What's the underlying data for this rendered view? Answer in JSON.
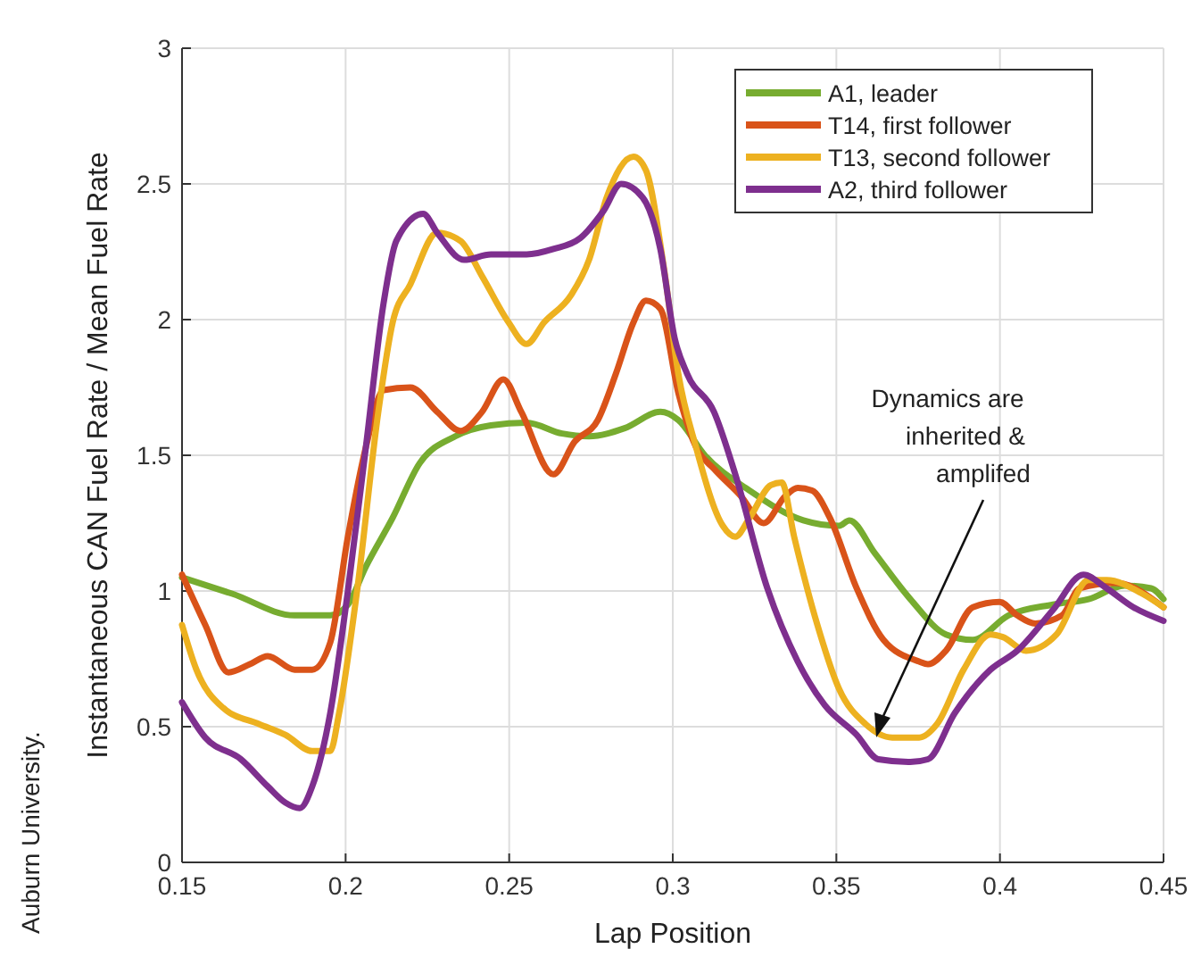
{
  "chart_data": {
    "type": "line",
    "xlabel": "Lap Position",
    "ylabel": "Instantaneous CAN Fuel Rate / Mean Fuel Rate",
    "xlim": [
      0.15,
      0.45
    ],
    "xticks": [
      0.15,
      0.2,
      0.25,
      0.3,
      0.35,
      0.4,
      0.45
    ],
    "ylim": [
      0,
      3
    ],
    "yticks": [
      0,
      0.5,
      1,
      1.5,
      2,
      2.5,
      3
    ],
    "grid": true,
    "legend": "top right",
    "marker": "none",
    "line_style": "solid",
    "annotations": [
      "Dynamics are\ninherited &\namplifed",
      "Auburn University."
    ],
    "series": [
      {
        "name": "A1, leader",
        "color": "#77ac30",
        "x": [
          0.15,
          0.1653,
          0.1844,
          0.1953,
          0.2007,
          0.2062,
          0.2144,
          0.2226,
          0.2335,
          0.2444,
          0.2553,
          0.2662,
          0.2744,
          0.2853,
          0.2962,
          0.3017,
          0.3098,
          0.3235,
          0.3399,
          0.3508,
          0.354,
          0.3617,
          0.3726,
          0.3835,
          0.3917,
          0.4026,
          0.4162,
          0.4271,
          0.4381,
          0.4462,
          0.45
        ],
        "values": [
          1.05,
          0.99,
          0.91,
          0.91,
          0.95,
          1.09,
          1.27,
          1.47,
          1.57,
          1.61,
          1.62,
          1.58,
          1.57,
          1.6,
          1.66,
          1.63,
          1.5,
          1.37,
          1.26,
          1.24,
          1.26,
          1.14,
          0.97,
          0.84,
          0.82,
          0.91,
          0.95,
          0.97,
          1.02,
          1.01,
          0.97
        ]
      },
      {
        "name": "T14, first follower",
        "color": "#d95319",
        "x": [
          0.15,
          0.1571,
          0.1642,
          0.1707,
          0.1762,
          0.1844,
          0.1898,
          0.1953,
          0.2007,
          0.2062,
          0.2116,
          0.2198,
          0.228,
          0.2351,
          0.2417,
          0.2482,
          0.2537,
          0.2635,
          0.27,
          0.2771,
          0.2826,
          0.288,
          0.2918,
          0.2962,
          0.3017,
          0.3071,
          0.3126,
          0.3208,
          0.3278,
          0.3344,
          0.3382,
          0.3426,
          0.348,
          0.3562,
          0.3644,
          0.3753,
          0.378,
          0.3835,
          0.3917,
          0.3999,
          0.4053,
          0.4108,
          0.419,
          0.4244,
          0.4353,
          0.45
        ],
        "values": [
          1.06,
          0.875,
          0.7,
          0.73,
          0.76,
          0.71,
          0.71,
          0.81,
          1.2,
          1.53,
          1.74,
          1.75,
          1.66,
          1.59,
          1.66,
          1.78,
          1.66,
          1.43,
          1.55,
          1.63,
          1.8,
          1.99,
          2.07,
          2.04,
          1.73,
          1.53,
          1.45,
          1.35,
          1.25,
          1.35,
          1.38,
          1.37,
          1.27,
          1.01,
          0.82,
          0.74,
          0.73,
          0.78,
          0.94,
          0.96,
          0.91,
          0.88,
          0.91,
          1.01,
          1.03,
          0.94
        ]
      },
      {
        "name": "T13, second follower",
        "color": "#edb120",
        "x": [
          0.15,
          0.1544,
          0.1625,
          0.1735,
          0.1816,
          0.1898,
          0.1953,
          0.198,
          0.2035,
          0.21,
          0.2144,
          0.2198,
          0.228,
          0.2351,
          0.2417,
          0.2498,
          0.2553,
          0.2607,
          0.2689,
          0.2744,
          0.2798,
          0.288,
          0.2918,
          0.2973,
          0.3017,
          0.3071,
          0.3153,
          0.3191,
          0.3235,
          0.33,
          0.3333,
          0.3371,
          0.3442,
          0.3508,
          0.3589,
          0.3671,
          0.3753,
          0.3808,
          0.3889,
          0.3971,
          0.4009,
          0.408,
          0.4173,
          0.4271,
          0.4326,
          0.4435,
          0.45
        ],
        "values": [
          0.875,
          0.71,
          0.57,
          0.51,
          0.47,
          0.41,
          0.41,
          0.55,
          1.0,
          1.66,
          1.99,
          2.13,
          2.32,
          2.29,
          2.16,
          1.99,
          1.91,
          1.99,
          2.09,
          2.22,
          2.45,
          2.6,
          2.55,
          2.19,
          1.8,
          1.53,
          1.24,
          1.2,
          1.27,
          1.39,
          1.4,
          1.2,
          0.875,
          0.64,
          0.51,
          0.46,
          0.46,
          0.51,
          0.71,
          0.84,
          0.83,
          0.78,
          0.84,
          1.04,
          1.04,
          0.99,
          0.94
        ]
      },
      {
        "name": "A2, third follower",
        "color": "#7e2f8e",
        "x": [
          0.15,
          0.1571,
          0.168,
          0.1762,
          0.1816,
          0.186,
          0.1898,
          0.1953,
          0.2007,
          0.2062,
          0.2116,
          0.2155,
          0.2237,
          0.228,
          0.2362,
          0.2444,
          0.2553,
          0.2635,
          0.2717,
          0.2788,
          0.2842,
          0.2908,
          0.2962,
          0.3006,
          0.3044,
          0.3126,
          0.3191,
          0.3289,
          0.3382,
          0.3464,
          0.3562,
          0.3628,
          0.3726,
          0.378,
          0.3862,
          0.3971,
          0.4053,
          0.4162,
          0.4255,
          0.4326,
          0.4408,
          0.45
        ],
        "values": [
          0.59,
          0.46,
          0.38,
          0.28,
          0.22,
          0.2,
          0.28,
          0.55,
          1.0,
          1.53,
          2.06,
          2.29,
          2.39,
          2.32,
          2.22,
          2.24,
          2.24,
          2.26,
          2.3,
          2.4,
          2.5,
          2.45,
          2.26,
          1.93,
          1.8,
          1.66,
          1.43,
          1.01,
          0.74,
          0.58,
          0.47,
          0.38,
          0.37,
          0.38,
          0.55,
          0.71,
          0.78,
          0.93,
          1.06,
          1.01,
          0.94,
          0.89
        ]
      }
    ]
  }
}
